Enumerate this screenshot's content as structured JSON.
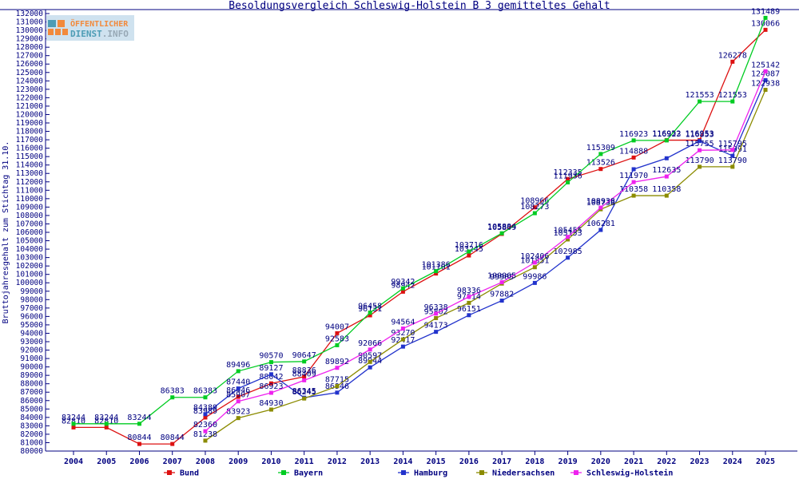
{
  "page": {
    "logo": {
      "line1": "ÖFFENTLICHER",
      "line2": "DIENST",
      "line2b": ".INFO"
    }
  },
  "chart_data": {
    "type": "line",
    "title": "Besoldungsvergleich Schleswig-Holstein B 3 gemitteltes Gehalt",
    "ylabel": "Bruttojahresgehalt zum Stichtag 31.10.",
    "xlabel": "",
    "x": [
      2004,
      2005,
      2006,
      2007,
      2008,
      2009,
      2010,
      2011,
      2012,
      2013,
      2014,
      2015,
      2016,
      2017,
      2018,
      2019,
      2020,
      2021,
      2022,
      2023,
      2024,
      2025
    ],
    "ylim": [
      80000,
      132000
    ],
    "ytick_step": 1000,
    "grid": false,
    "legend_position": "bottom",
    "label_color": "#000080",
    "series": [
      {
        "name": "Bund",
        "color": "#dd1111",
        "values": [
          82810,
          82810,
          80844,
          80844,
          83989,
          86446,
          88042,
          88836,
          94007,
          96131,
          98942,
          101101,
          103245,
          105809,
          108966,
          112335,
          113526,
          114888,
          116952,
          116953,
          126278,
          130066
        ],
        "unlabeled_years": []
      },
      {
        "name": "Bayern",
        "color": "#00cc22",
        "values": [
          83244,
          83244,
          83244,
          86383,
          86383,
          89496,
          90570,
          90647,
          92583,
          96458,
          99342,
          101386,
          103716,
          105884,
          108273,
          111936,
          115309,
          116923,
          116923,
          121553,
          121553,
          131489
        ],
        "unlabeled_years": []
      },
      {
        "name": "Hamburg",
        "color": "#2233cc",
        "values": [
          null,
          null,
          null,
          null,
          84389,
          87440,
          89127,
          86345,
          86946,
          89944,
          92417,
          94173,
          96151,
          97882,
          99986,
          102985,
          106281,
          113500,
          114800,
          116853,
          115091,
          124087
        ],
        "unlabeled_years": [
          2021,
          2022
        ]
      },
      {
        "name": "Niedersachsen",
        "color": "#8b8b00",
        "values": [
          null,
          null,
          null,
          null,
          81238,
          83923,
          84930,
          86245,
          87715,
          90597,
          93270,
          95802,
          97614,
          99905,
          101851,
          105153,
          108738,
          110358,
          110358,
          113790,
          113790,
          122938
        ],
        "unlabeled_years": []
      },
      {
        "name": "Schleswig-Holstein",
        "color": "#ee22ee",
        "values": [
          null,
          null,
          null,
          null,
          82360,
          85907,
          86923,
          88409,
          89892,
          92066,
          94564,
          96338,
          98336,
          100065,
          102406,
          105455,
          108938,
          111970,
          112635,
          115755,
          115795,
          125142
        ],
        "unlabeled_years": []
      }
    ]
  }
}
